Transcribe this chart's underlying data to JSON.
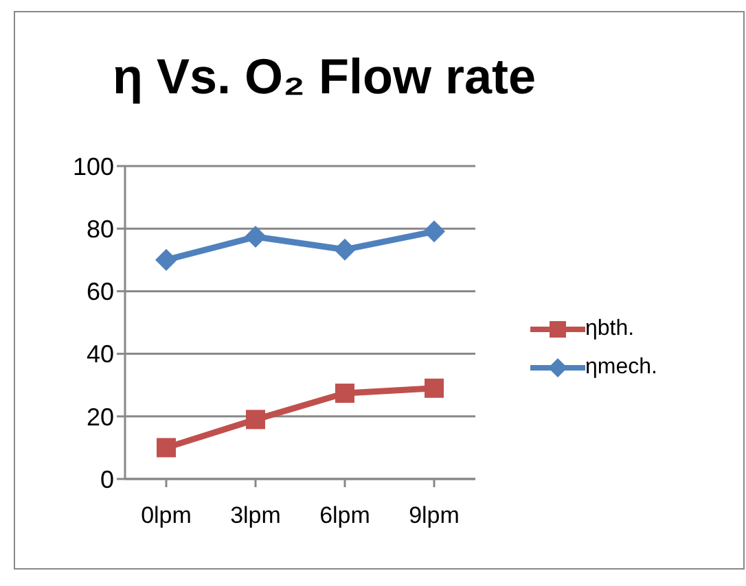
{
  "chart_data": {
    "type": "line",
    "title": "η Vs. O₂ Flow rate",
    "categories": [
      "0lpm",
      "3lpm",
      "6lpm",
      "9lpm"
    ],
    "series": [
      {
        "name": "ηbth.",
        "color": "#c0504d",
        "values": [
          10,
          19,
          27.4,
          29
        ],
        "marker": "square"
      },
      {
        "name": "ηmech.",
        "color": "#4f81bd",
        "values": [
          70,
          77.4,
          73.3,
          79.1
        ],
        "marker": "diamond"
      }
    ],
    "ylim": [
      0,
      100
    ],
    "yticks": [
      0,
      20,
      40,
      60,
      80,
      100
    ],
    "grid": "y",
    "legend": "right"
  }
}
